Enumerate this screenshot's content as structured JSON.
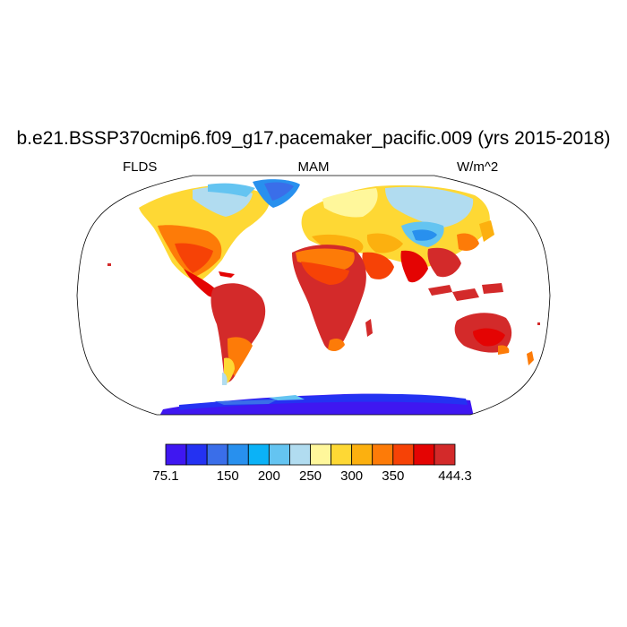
{
  "title": "b.e21.BSSP370cmip6.f09_g17.pacemaker_pacific.009 (yrs 2015-2018)",
  "left_label": "FLDS",
  "center_label": "MAM",
  "right_label": "W/m^2",
  "colorbar": {
    "colors": [
      "#3f17f1",
      "#2432f2",
      "#3a6ee9",
      "#2890ee",
      "#0bb2f7",
      "#64c4f1",
      "#b1dcf0",
      "#fff79b",
      "#fed834",
      "#fcb00f",
      "#fd7b08",
      "#f64206",
      "#e40403",
      "#d32a2a"
    ],
    "labels": [
      {
        "text": "75.1",
        "edge": 0
      },
      {
        "text": "150",
        "edge": 3
      },
      {
        "text": "200",
        "edge": 5
      },
      {
        "text": "250",
        "edge": 7
      },
      {
        "text": "300",
        "edge": 9
      },
      {
        "text": "350",
        "edge": 11
      },
      {
        "text": "444.3",
        "edge": 14
      }
    ]
  }
}
